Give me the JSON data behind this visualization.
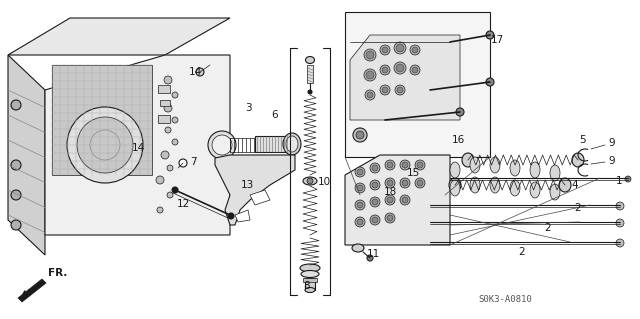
{
  "bg": "#ffffff",
  "dark": "#1a1a1a",
  "gray_light": "#e8e8e8",
  "gray_mid": "#cccccc",
  "gray_dark": "#999999",
  "lw_main": 0.8,
  "lw_thin": 0.5,
  "lw_thick": 1.2,
  "fig_width": 6.4,
  "fig_height": 3.19,
  "dpi": 100,
  "watermark": "S0K3-A0810",
  "labels": [
    [
      "1",
      619,
      181
    ],
    [
      "2",
      578,
      208
    ],
    [
      "2",
      548,
      228
    ],
    [
      "2",
      522,
      252
    ],
    [
      "3",
      248,
      108
    ],
    [
      "4",
      575,
      185
    ],
    [
      "5",
      582,
      140
    ],
    [
      "6",
      275,
      115
    ],
    [
      "7",
      193,
      162
    ],
    [
      "8",
      307,
      286
    ],
    [
      "9",
      612,
      143
    ],
    [
      "9",
      612,
      161
    ],
    [
      "10",
      324,
      182
    ],
    [
      "11",
      373,
      254
    ],
    [
      "12",
      183,
      204
    ],
    [
      "13",
      247,
      185
    ],
    [
      "14",
      195,
      72
    ],
    [
      "14",
      138,
      148
    ],
    [
      "15",
      413,
      173
    ],
    [
      "16",
      458,
      140
    ],
    [
      "17",
      497,
      40
    ],
    [
      "18",
      390,
      192
    ]
  ]
}
